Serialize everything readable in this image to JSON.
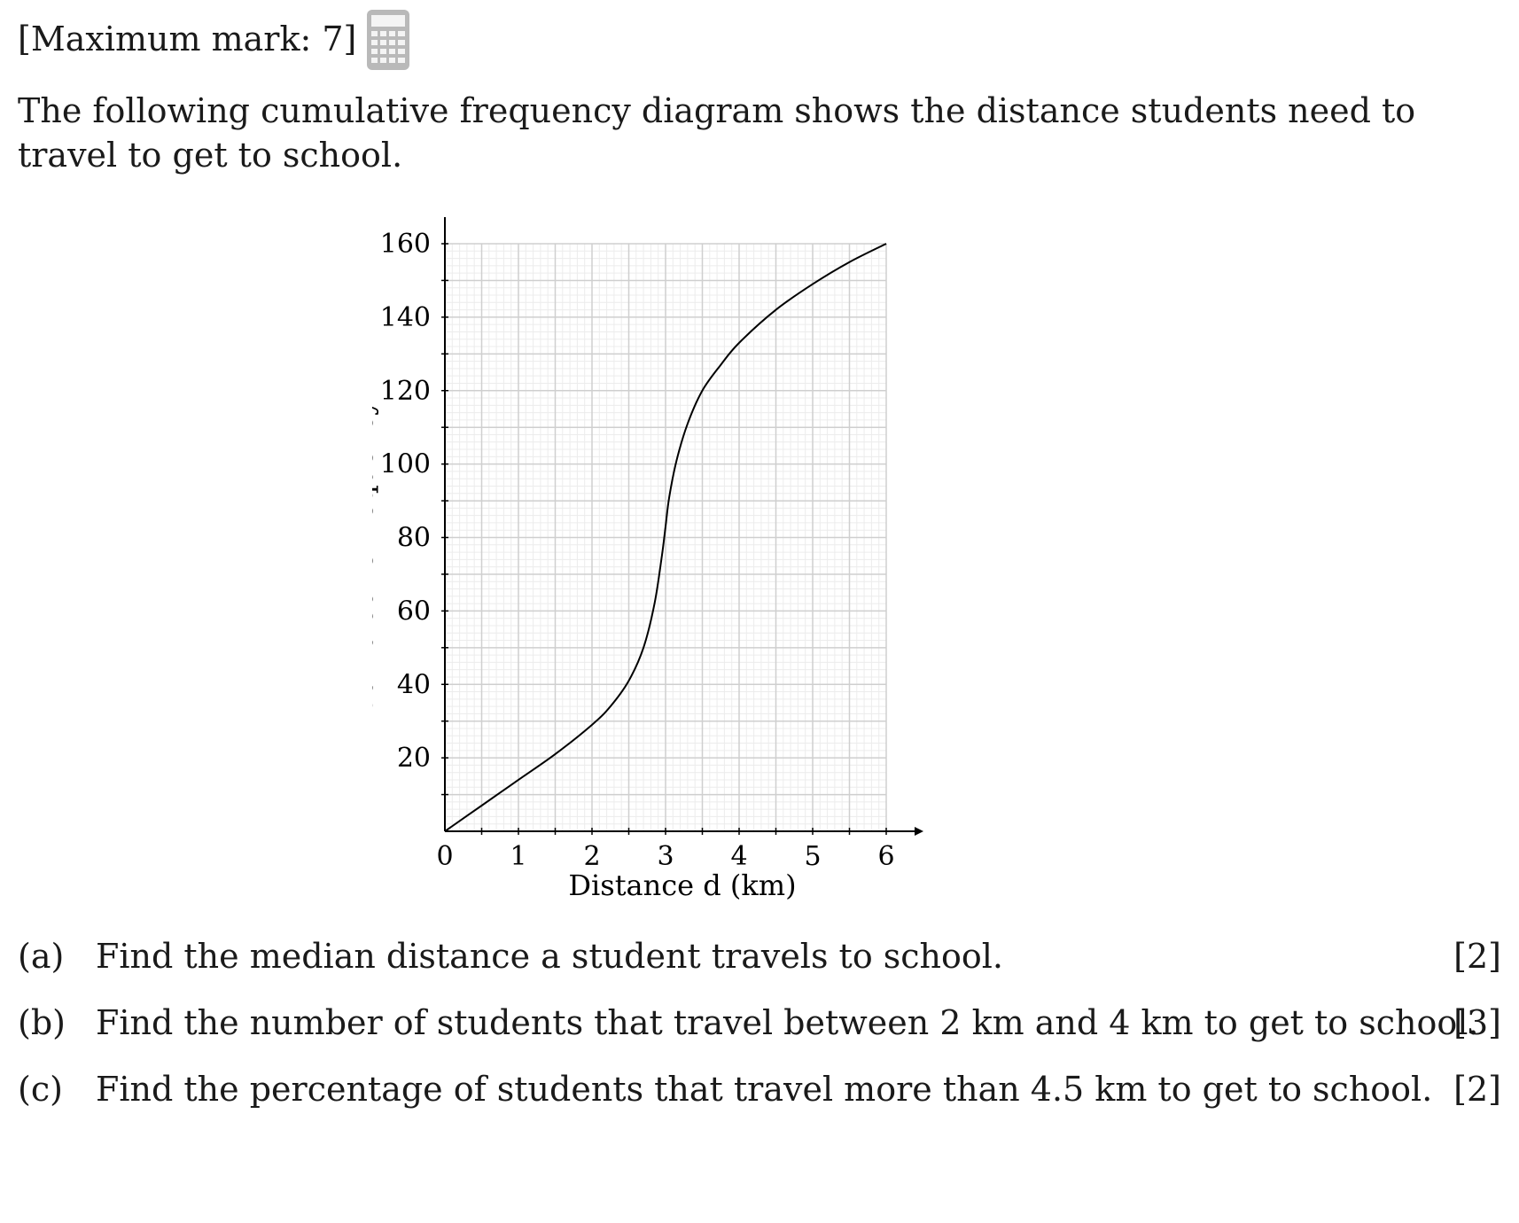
{
  "header": {
    "max_mark": "[Maximum mark: 7]",
    "calculator_icon": "calculator-icon"
  },
  "intro": {
    "text": "The following cumulative frequency diagram shows the distance students need to travel to get to school."
  },
  "chart_data": {
    "type": "line",
    "title": "",
    "xlabel": "Distance d (km)",
    "ylabel": "Cumulative frequency",
    "xlim": [
      0,
      6
    ],
    "ylim": [
      0,
      160
    ],
    "x_ticks": [
      "0",
      "1",
      "2",
      "3",
      "4",
      "5",
      "6"
    ],
    "y_ticks": [
      "20",
      "40",
      "60",
      "80",
      "100",
      "120",
      "140",
      "160"
    ],
    "grid": true,
    "series": [
      {
        "points": [
          [
            0,
            0
          ],
          [
            0.5,
            7
          ],
          [
            1,
            14
          ],
          [
            1.5,
            21
          ],
          [
            2,
            29
          ],
          [
            2.25,
            34
          ],
          [
            2.5,
            41
          ],
          [
            2.7,
            50
          ],
          [
            2.85,
            62
          ],
          [
            2.95,
            75
          ],
          [
            3,
            83
          ],
          [
            3.05,
            91
          ],
          [
            3.15,
            101
          ],
          [
            3.3,
            111
          ],
          [
            3.5,
            120
          ],
          [
            3.75,
            127
          ],
          [
            4,
            133
          ],
          [
            4.5,
            142
          ],
          [
            5,
            149
          ],
          [
            5.5,
            155
          ],
          [
            6,
            160
          ]
        ]
      }
    ]
  },
  "questions": [
    {
      "letter": "(a)",
      "text": "Find the median distance a student travels to school.",
      "marks": "[2]"
    },
    {
      "letter": "(b)",
      "text": "Find the number of students that travel between 2 km and 4 km to get to school.",
      "marks": "[3]"
    },
    {
      "letter": "(c)",
      "text": "Find the percentage of students that travel more than 4.5 km to get to school.",
      "marks": "[2]"
    }
  ]
}
